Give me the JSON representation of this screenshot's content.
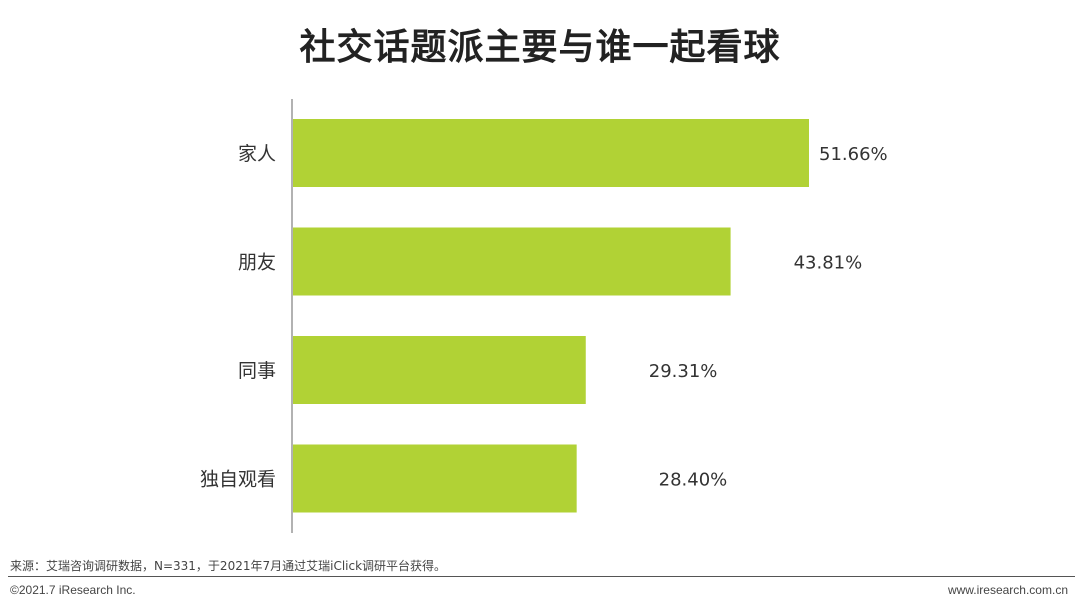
{
  "title": "社交话题派主要与谁一起看球",
  "chart_data": {
    "type": "bar",
    "orientation": "horizontal",
    "categories": [
      "家人",
      "朋友",
      "同事",
      "独自观看"
    ],
    "values": [
      51.66,
      43.81,
      29.31,
      28.4
    ],
    "value_labels": [
      "51.66%",
      "43.81%",
      "29.31%",
      "28.40%"
    ],
    "unit": "%",
    "xlim": [
      0,
      51.66
    ],
    "bar_color": "#b1d235",
    "grid": false,
    "legend": "none"
  },
  "footer": {
    "source": "来源：艾瑞咨询调研数据，N=331，于2021年7月通过艾瑞iClick调研平台获得。",
    "copyright": "©2021.7 iResearch Inc.",
    "website": "www.iresearch.com.cn"
  }
}
